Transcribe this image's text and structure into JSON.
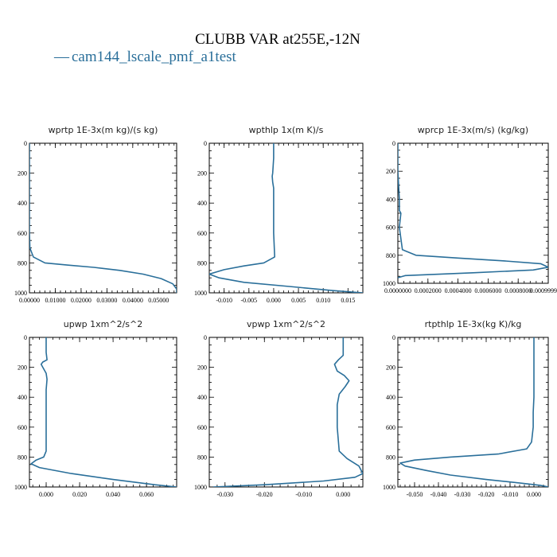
{
  "figure": {
    "title": "CLUBB VAR at255E,-12N",
    "legend": [
      {
        "label": "cam144_lscale_pmf_a1test",
        "color": "#2a6f9a"
      }
    ]
  },
  "chart_data": [
    {
      "type": "line",
      "title": "wprtp  1E-3x(m kg)/(s kg)",
      "xlim": [
        0,
        0.057
      ],
      "ylim": [
        1000,
        0
      ],
      "x_ticks": [
        0.0,
        0.01,
        0.02,
        0.03,
        0.04,
        0.05
      ],
      "x_tick_labels": [
        "0.00000",
        "0.01000",
        "0.02000",
        "0.03000",
        "0.04000",
        "0.05000"
      ],
      "y_ticks": [
        0,
        200,
        400,
        600,
        800,
        1000
      ],
      "y_tick_labels": [
        "0",
        "200",
        "400",
        "600",
        "800",
        "1000"
      ],
      "series": [
        {
          "x": [
            0,
            0,
            0,
            0,
            0,
            0,
            0,
            0.0002,
            0.0015,
            0.006,
            0.015,
            0.025,
            0.035,
            0.044,
            0.051,
            0.0555,
            0.057,
            0.057
          ],
          "y": [
            0,
            100,
            200,
            300,
            400,
            500,
            600,
            700,
            760,
            800,
            815,
            830,
            850,
            875,
            905,
            940,
            975,
            1000
          ]
        }
      ]
    },
    {
      "type": "line",
      "title": "wpthlp  1x(m K)/s",
      "xlim": [
        -0.013,
        0.018
      ],
      "ylim": [
        1000,
        0
      ],
      "x_ticks": [
        -0.01,
        -0.005,
        0,
        0.005,
        0.01,
        0.015
      ],
      "x_tick_labels": [
        "-0.010",
        "-0.005",
        "0.000",
        "0.005",
        "0.010",
        "0.015"
      ],
      "y_ticks": [
        0,
        200,
        400,
        600,
        800,
        1000
      ],
      "y_tick_labels": [
        "0",
        "200",
        "400",
        "600",
        "800",
        "1000"
      ],
      "series": [
        {
          "x": [
            0,
            0,
            -0.0002,
            -0.0003,
            -0.0002,
            0,
            0,
            0,
            0.0002,
            -0.002,
            -0.006,
            -0.01,
            -0.013,
            -0.011,
            -0.006,
            0.004,
            0.012,
            0.018
          ],
          "y": [
            0,
            100,
            200,
            220,
            260,
            300,
            400,
            600,
            760,
            800,
            820,
            845,
            875,
            900,
            930,
            960,
            985,
            1000
          ]
        }
      ]
    },
    {
      "type": "line",
      "title": "wprcp  1E-3x(m/s) (kg/kg)",
      "xlim": [
        0,
        0.001
      ],
      "ylim": [
        1000,
        0
      ],
      "x_ticks": [
        0.0,
        0.0002,
        0.0004,
        0.0006,
        0.0008,
        0.001
      ],
      "x_tick_labels": [
        "0.0000000",
        "0.0002000",
        "0.0004000",
        "0.0006000",
        "0.0008000",
        "0.0009999999"
      ],
      "y_ticks": [
        0,
        200,
        400,
        600,
        800,
        1000
      ],
      "y_tick_labels": [
        "0",
        "200",
        "400",
        "600",
        "800",
        "1000"
      ],
      "series": [
        {
          "x": [
            0,
            0,
            1e-05,
            1e-05,
            2e-05,
            1e-05,
            3e-05,
            0.00012,
            0.0004,
            0.0007,
            0.00095,
            0.001,
            0.0009,
            0.0005,
            5e-05,
            0
          ],
          "y": [
            0,
            200,
            400,
            480,
            500,
            600,
            760,
            800,
            820,
            840,
            860,
            885,
            905,
            925,
            945,
            960
          ]
        }
      ]
    },
    {
      "type": "line",
      "title": "upwp  1xm^2/s^2",
      "xlim": [
        -0.01,
        0.078
      ],
      "ylim": [
        1000,
        0
      ],
      "x_ticks": [
        0.0,
        0.02,
        0.04,
        0.06
      ],
      "x_tick_labels": [
        "0.000",
        "0.020",
        "0.040",
        "0.060"
      ],
      "y_ticks": [
        0,
        200,
        400,
        600,
        800,
        1000
      ],
      "y_tick_labels": [
        "0",
        "200",
        "400",
        "600",
        "800",
        "1000"
      ],
      "series": [
        {
          "x": [
            0,
            0,
            0.0005,
            -0.002,
            -0.003,
            -0.002,
            0,
            0.0005,
            0,
            0,
            0,
            0,
            -0.0015,
            -0.006,
            -0.009,
            -0.004,
            0.015,
            0.04,
            0.065,
            0.078
          ],
          "y": [
            0,
            100,
            150,
            165,
            180,
            200,
            240,
            280,
            350,
            500,
            700,
            760,
            800,
            820,
            845,
            870,
            910,
            950,
            985,
            1000
          ]
        }
      ]
    },
    {
      "type": "line",
      "title": "vpwp  1xm^2/s^2",
      "xlim": [
        -0.034,
        0.005
      ],
      "ylim": [
        1000,
        0
      ],
      "x_ticks": [
        -0.03,
        -0.02,
        -0.01,
        0.0
      ],
      "x_tick_labels": [
        "-0.030",
        "-0.020",
        "-0.010",
        "0.000"
      ],
      "y_ticks": [
        0,
        200,
        400,
        600,
        800,
        1000
      ],
      "y_tick_labels": [
        "0",
        "200",
        "400",
        "600",
        "800",
        "1000"
      ],
      "series": [
        {
          "x": [
            0,
            0,
            -0.0012,
            -0.0022,
            -0.0015,
            0.0003,
            0.0015,
            0.0005,
            -0.001,
            -0.0015,
            -0.0015,
            -0.001,
            0.001,
            0.004,
            0.005,
            0.003,
            -0.005,
            -0.02,
            -0.033
          ],
          "y": [
            0,
            120,
            150,
            180,
            225,
            255,
            290,
            330,
            380,
            450,
            600,
            760,
            810,
            860,
            910,
            935,
            960,
            985,
            1000
          ]
        }
      ]
    },
    {
      "type": "line",
      "title": "rtpthlp  1E-3x(kg K)/kg",
      "xlim": [
        -0.057,
        0.006
      ],
      "ylim": [
        1000,
        0
      ],
      "x_ticks": [
        -0.05,
        -0.04,
        -0.03,
        -0.02,
        -0.01,
        0.0
      ],
      "x_tick_labels": [
        "-0.050",
        "-0.040",
        "-0.030",
        "-0.020",
        "-0.010",
        "0.000"
      ],
      "y_ticks": [
        0,
        200,
        400,
        600,
        800,
        1000
      ],
      "y_tick_labels": [
        "0",
        "200",
        "400",
        "600",
        "800",
        "1000"
      ],
      "series": [
        {
          "x": [
            0,
            0,
            0,
            -0.0003,
            -0.0003,
            -0.001,
            -0.003,
            -0.015,
            -0.035,
            -0.05,
            -0.056,
            -0.054,
            -0.045,
            -0.035,
            -0.02,
            -0.005,
            0.003,
            0.006
          ],
          "y": [
            0,
            200,
            400,
            500,
            600,
            700,
            745,
            780,
            800,
            820,
            840,
            860,
            890,
            920,
            950,
            975,
            990,
            1000
          ]
        }
      ]
    }
  ]
}
